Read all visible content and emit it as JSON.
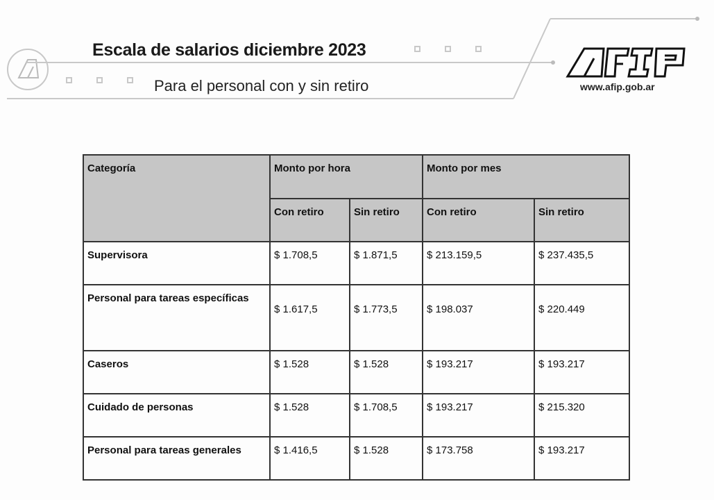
{
  "header": {
    "title": "Escala de salarios diciembre 2023",
    "subtitle": "Para el personal con y sin retiro",
    "logo_text": "AFIP",
    "url": "www.afip.gob.ar"
  },
  "table": {
    "category_header": "Categoría",
    "group_headers": [
      "Monto por hora",
      "Monto por mes"
    ],
    "sub_headers": [
      "Con retiro",
      "Sin retiro",
      "Con retiro",
      "Sin retiro"
    ],
    "rows": [
      {
        "category": "Supervisora",
        "values": [
          "$ 1.708,5",
          "$  1.871,5",
          "$ 213.159,5",
          "$ 237.435,5"
        ]
      },
      {
        "category": "Personal para tareas específicas",
        "values": [
          "$ 1.617,5",
          "$ 1.773,5",
          "$ 198.037",
          "$ 220.449"
        ]
      },
      {
        "category": "Caseros",
        "values": [
          "$  1.528",
          "$  1.528",
          "$ 193.217",
          "$ 193.217"
        ]
      },
      {
        "category": "Cuidado de personas",
        "values": [
          "$  1.528",
          "$  1.708,5",
          "$ 193.217",
          "$ 215.320"
        ]
      },
      {
        "category": "Personal para tareas generales",
        "values": [
          "$ 1.416,5",
          "$  1.528",
          "$ 173.758",
          "$ 193.217"
        ]
      }
    ]
  }
}
